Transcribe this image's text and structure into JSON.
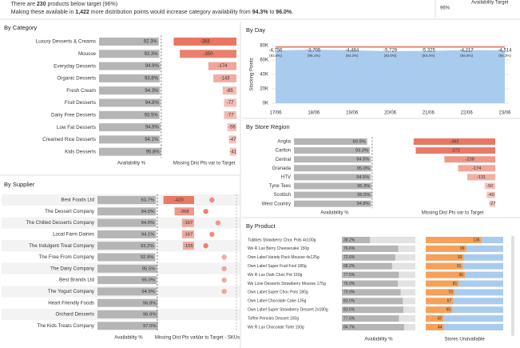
{
  "header": {
    "line1": [
      "There are ",
      "230",
      " products below target (96%)"
    ],
    "line2": [
      "Making these available in ",
      "1,422",
      " more distribution points would increase category availability from ",
      "94.3%",
      " to ",
      "96.0%",
      "."
    ],
    "target_label": "Availability Target",
    "target_value": "96%"
  },
  "chart_data": [
    {
      "type": "bar",
      "title": "By Category",
      "categories": [
        "Luxury Desserts & Creams",
        "Mousse",
        "Everyday Desserts",
        "Organic Desserts",
        "Fresh Cream",
        "Fruit Desserts",
        "Dairy Free Desserts",
        "Low Fat Desserts",
        "Creamed Rice Desserts",
        "Kids Desserts"
      ],
      "panels": [
        {
          "xlabel": "Availability %",
          "values": [
            92.3,
            93.3,
            94.9,
            93.8,
            94.3,
            94.8,
            93.5,
            94.9,
            94.1,
            95.8
          ],
          "value_labels": [
            "92.3%",
            "93.3%",
            "94.9%",
            "93.8%",
            "94.3%",
            "94.8%",
            "93.5%",
            "94.9%",
            "94.1%",
            "95.8%"
          ],
          "xlim": [
            0,
            100
          ],
          "color": "#b5b5b5",
          "target": 96
        },
        {
          "xlabel": "Missing Dist Pts var to Target",
          "values": [
            -388,
            -350,
            -174,
            -143,
            -85,
            -77,
            -77,
            -56,
            -47,
            -41
          ],
          "xlim": [
            -400,
            0
          ],
          "color": "#e8735f"
        }
      ]
    },
    {
      "type": "area",
      "title": "By Day",
      "ylabel": "Stocking Points",
      "categories": [
        "17/06",
        "18/06",
        "19/06",
        "20/06",
        "21/06",
        "22/06",
        "23/06"
      ],
      "ylim": [
        0,
        80000
      ],
      "yticks": [
        {
          "value": 0,
          "label": "0K"
        },
        {
          "value": 20000,
          "label": "20K"
        },
        {
          "value": 40000,
          "label": "40K"
        },
        {
          "value": 60000,
          "label": "60K"
        },
        {
          "value": 80000,
          "label": "80K"
        }
      ],
      "grid": true,
      "series": [
        {
          "color": "#a9cbee",
          "fill": true,
          "values": [
            73244,
            74295,
            73536,
            72271,
            72675,
            73783,
            73486
          ]
        },
        {
          "color": "#e8735f",
          "fill": false,
          "values": [
            78000,
            78000,
            78000,
            78000,
            78000,
            78000,
            78000
          ]
        }
      ],
      "annotations": [
        {
          "text": "-4,756",
          "sub": "(93.6%)"
        },
        {
          "text": "-3,705",
          "sub": "(95.1%)"
        },
        {
          "text": "-4,464",
          "sub": "(94.3%)"
        },
        {
          "text": "-5,729",
          "sub": "(93.0%)"
        },
        {
          "text": "-5,325",
          "sub": "(93.4%)"
        },
        {
          "text": "-4,217",
          "sub": "(94.6%)"
        },
        {
          "text": "-4,514",
          "sub": "(94.3%)"
        }
      ]
    },
    {
      "type": "bar",
      "title": "By Store Region",
      "categories": [
        "Anglia",
        "Carlton",
        "Central",
        "Granada",
        "HTV",
        "Tyne Tees",
        "Scottish",
        "West Country"
      ],
      "panels": [
        {
          "xlabel": "Availability %",
          "values": [
            89.9,
            93.3,
            94.5,
            95.0,
            94.5,
            95.3,
            95.5,
            94.8
          ],
          "value_labels": [
            "89.9%",
            "93.3%",
            "94.5%",
            "95.0%",
            "94.5%",
            "95.3%",
            "95.5%",
            "94.8%"
          ],
          "xlim": [
            0,
            100
          ],
          "color": "#b5b5b5",
          "target": 96
        },
        {
          "xlabel": "Missing Dist Pts var to Target",
          "values": [
            -382,
            -372,
            -238,
            -174,
            -131,
            -50,
            -40,
            -27
          ],
          "xlim": [
            -400,
            0
          ],
          "color": "#e8735f"
        }
      ]
    },
    {
      "type": "bar",
      "title": "By Supplier",
      "categories": [
        "Best Foods Ltd",
        "The Dessert Company",
        "The Chilled Desserts Company",
        "Local Farm Dairies",
        "The Indulgent Treat Company",
        "The Free From Company",
        "The Dairy Company",
        "Best Brands Ltd",
        "The Yogurt Company",
        "Heart Friendly Foods",
        "Orchard Desserts",
        "The Kids Treats Company"
      ],
      "panels": [
        {
          "xlabel": "Availability %",
          "values": [
            93.7,
            94.0,
            94.0,
            94.1,
            93.2,
            92.9,
            95.5,
            95.0,
            94.9,
            96.8,
            96.9,
            97.0
          ],
          "value_labels": [
            "93.7%",
            "94.0%",
            "94.0%",
            "94.1%",
            "93.2%",
            "92.9%",
            "95.5%",
            "95.0%",
            "94.9%",
            "96.8%",
            "96.9%",
            "97.0%"
          ],
          "xlim": [
            0,
            100
          ],
          "color": "#b5b5b5",
          "target": 96
        },
        {
          "xlabel": "Missing Dist Pts var...",
          "values": [
            -420,
            -268,
            -167,
            -167,
            -155,
            null,
            null,
            null,
            null,
            null,
            null,
            null
          ],
          "xlim": [
            -450,
            0
          ],
          "color": "#e8735f"
        },
        {
          "xlabel": "Var to Target - SKUs",
          "marker": "dot",
          "values": [
            -4,
            -5,
            -3,
            -4,
            -5,
            -2,
            -2,
            -2,
            -2,
            null,
            null,
            null
          ],
          "xlim": [
            -6,
            0
          ],
          "color": "#e8735f"
        }
      ]
    },
    {
      "type": "bar",
      "title": "By Product",
      "categories": [
        "Tubbies Strawberry Choc Pots 4x100g",
        "We R Lux Berry Cheesecake 150g",
        "Own Label Variety Pack Mousse 4x125g",
        "Own Label Super Fruit Fool 180g",
        "We R Lux Dark Choc Pot 150g",
        "We Love Desserts Strawberry Mousse 175g",
        "Own Label Super Choc Pots 180g",
        "Own Label Chocolate Cake 135g",
        "Own Label Super Strawberry Dessert 2x180g",
        "Toffee Pennies Dessert 150g",
        "We R Lux Chocolate Torte 150g"
      ],
      "panels": [
        {
          "xlabel": "Availability %",
          "values": [
            38.2,
            76.6,
            72.6,
            68.2,
            77.5,
            76.0,
            79.9,
            83.0,
            83.6,
            77.6,
            84.7
          ],
          "value_labels": [
            "38.2%",
            "76.6%",
            "72.6%",
            "68.2%",
            "77.5%",
            "76.0%",
            "79.9%",
            "83.0%",
            "83.6%",
            "77.6%",
            "84.7%"
          ],
          "xlim": [
            0,
            100
          ],
          "color": "#b5b5b5",
          "track": "#e2e2e2"
        },
        {
          "xlabel": "Stores Unavailable",
          "values": [
            136,
            99,
            93,
            91,
            96,
            81,
            70,
            67,
            65,
            43,
            44
          ],
          "xlim": [
            0,
            190
          ],
          "color": "#f5a15a",
          "track": "#a9cbee"
        }
      ]
    }
  ]
}
